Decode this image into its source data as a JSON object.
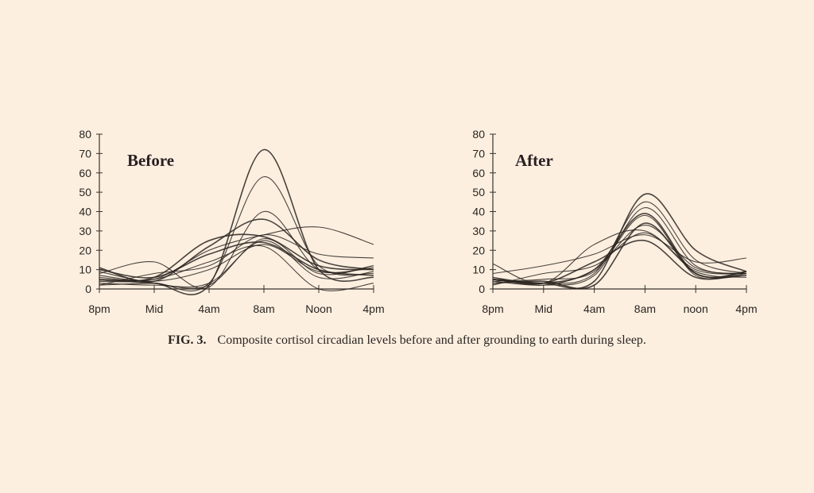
{
  "caption": {
    "label": "FIG. 3.",
    "text": "Composite cortisol circadian levels before and after grounding to earth during sleep."
  },
  "chart_data": [
    {
      "type": "line",
      "title": "Before",
      "xlabel": "",
      "ylabel": "",
      "categories": [
        "8pm",
        "Mid",
        "4am",
        "8am",
        "Noon",
        "4pm"
      ],
      "ylim": [
        0,
        80
      ],
      "yticks": [
        "0",
        "10",
        "20",
        "30",
        "40",
        "50",
        "60",
        "70",
        "80"
      ],
      "grid": false,
      "color": "#2a2420",
      "series": [
        {
          "name": "s1",
          "values": [
            5,
            3,
            2,
            72,
            10,
            6
          ]
        },
        {
          "name": "s2",
          "values": [
            2,
            3,
            3,
            58,
            12,
            8
          ]
        },
        {
          "name": "s3",
          "values": [
            8,
            14,
            1,
            40,
            10,
            12
          ]
        },
        {
          "name": "s4",
          "values": [
            11,
            4,
            22,
            36,
            15,
            10
          ]
        },
        {
          "name": "s5",
          "values": [
            6,
            5,
            20,
            28,
            32,
            23
          ]
        },
        {
          "name": "s6",
          "values": [
            2,
            8,
            12,
            28,
            18,
            16
          ]
        },
        {
          "name": "s7",
          "values": [
            4,
            6,
            25,
            27,
            12,
            10
          ]
        },
        {
          "name": "s8",
          "values": [
            9,
            3,
            2,
            26,
            8,
            12
          ]
        },
        {
          "name": "s9",
          "values": [
            3,
            2,
            3,
            25,
            6,
            9
          ]
        },
        {
          "name": "s10",
          "values": [
            10,
            6,
            18,
            24,
            10,
            7
          ]
        },
        {
          "name": "s11",
          "values": [
            5,
            5,
            14,
            22,
            0,
            3
          ]
        },
        {
          "name": "s12",
          "values": [
            7,
            4,
            10,
            23,
            9,
            11
          ]
        }
      ]
    },
    {
      "type": "line",
      "title": "After",
      "xlabel": "",
      "ylabel": "",
      "categories": [
        "8pm",
        "Mid",
        "4am",
        "8am",
        "noon",
        "4pm"
      ],
      "ylim": [
        0,
        80
      ],
      "yticks": [
        "0",
        "10",
        "20",
        "30",
        "40",
        "50",
        "60",
        "70",
        "80"
      ],
      "grid": false,
      "color": "#2a2420",
      "series": [
        {
          "name": "s1",
          "values": [
            5,
            3,
            4,
            49,
            20,
            9
          ]
        },
        {
          "name": "s2",
          "values": [
            6,
            3,
            8,
            45,
            15,
            8
          ]
        },
        {
          "name": "s3",
          "values": [
            4,
            2,
            7,
            42,
            12,
            8
          ]
        },
        {
          "name": "s4",
          "values": [
            5,
            3,
            10,
            39,
            8,
            9
          ]
        },
        {
          "name": "s5",
          "values": [
            13,
            3,
            23,
            30,
            10,
            8
          ]
        },
        {
          "name": "s6",
          "values": [
            8,
            12,
            18,
            28,
            14,
            16
          ]
        },
        {
          "name": "s7",
          "values": [
            3,
            4,
            2,
            34,
            8,
            7
          ]
        },
        {
          "name": "s8",
          "values": [
            6,
            2,
            10,
            33,
            11,
            8
          ]
        },
        {
          "name": "s9",
          "values": [
            4,
            5,
            9,
            38,
            7,
            9
          ]
        },
        {
          "name": "s10",
          "values": [
            5,
            3,
            14,
            25,
            6,
            8
          ]
        },
        {
          "name": "s11",
          "values": [
            2,
            8,
            12,
            29,
            9,
            6
          ]
        }
      ]
    }
  ]
}
